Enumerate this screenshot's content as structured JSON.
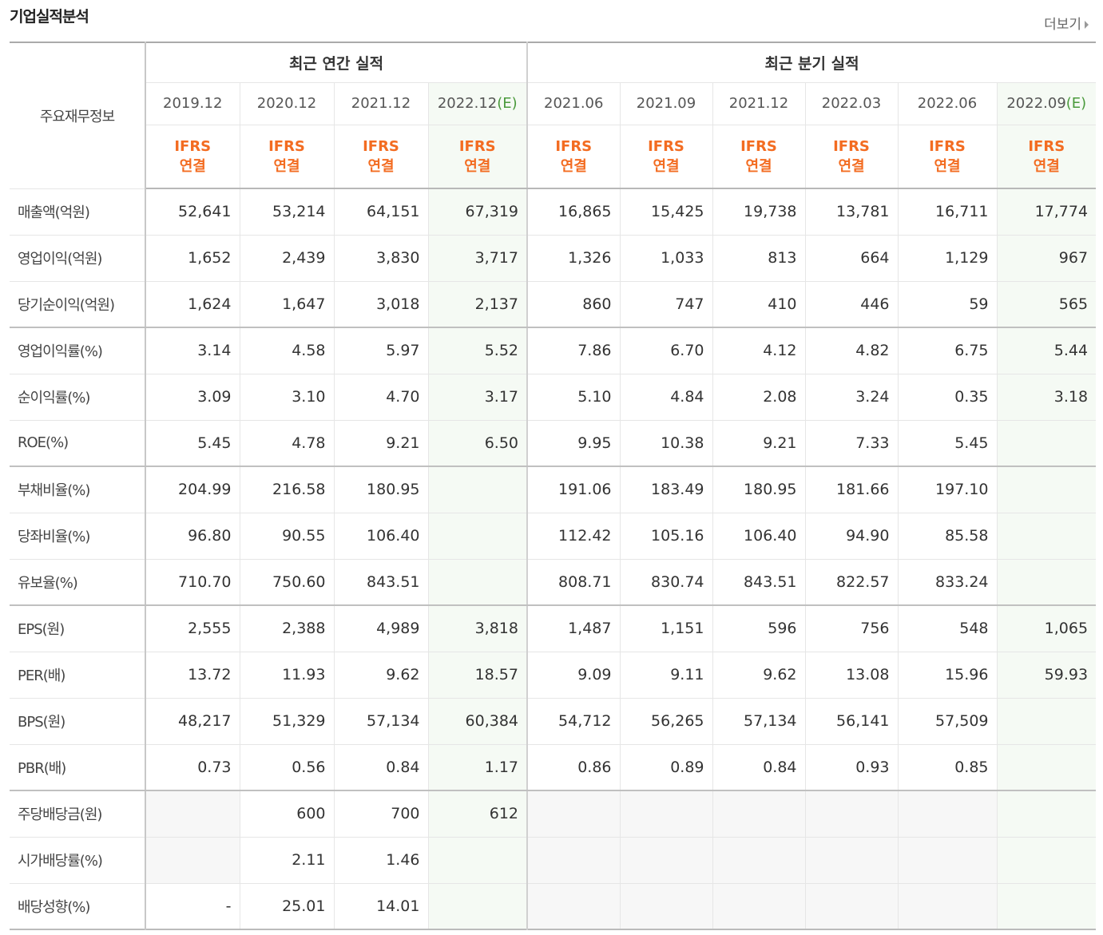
{
  "header": {
    "title": "기업실적분석",
    "more": "더보기"
  },
  "table": {
    "row_header": "주요재무정보",
    "groups": [
      {
        "label": "최근 연간 실적",
        "columns": [
          {
            "date": "2019.12",
            "ifrs": "IFRS",
            "basis": "연결"
          },
          {
            "date": "2020.12",
            "ifrs": "IFRS",
            "basis": "연결"
          },
          {
            "date": "2021.12",
            "ifrs": "IFRS",
            "basis": "연결"
          },
          {
            "date": "2022.12",
            "estimate": "(E)",
            "ifrs": "IFRS",
            "basis": "연결"
          }
        ]
      },
      {
        "label": "최근 분기 실적",
        "columns": [
          {
            "date": "2021.06",
            "ifrs": "IFRS",
            "basis": "연결"
          },
          {
            "date": "2021.09",
            "ifrs": "IFRS",
            "basis": "연결"
          },
          {
            "date": "2021.12",
            "ifrs": "IFRS",
            "basis": "연결"
          },
          {
            "date": "2022.03",
            "ifrs": "IFRS",
            "basis": "연결"
          },
          {
            "date": "2022.06",
            "ifrs": "IFRS",
            "basis": "연결"
          },
          {
            "date": "2022.09",
            "estimate": "(E)",
            "ifrs": "IFRS",
            "basis": "연결"
          }
        ]
      }
    ],
    "rows": [
      {
        "label": "매출액(억원)",
        "values": [
          "52,641",
          "53,214",
          "64,151",
          "67,319",
          "16,865",
          "15,425",
          "19,738",
          "13,781",
          "16,711",
          "17,774"
        ]
      },
      {
        "label": "영업이익(억원)",
        "values": [
          "1,652",
          "2,439",
          "3,830",
          "3,717",
          "1,326",
          "1,033",
          "813",
          "664",
          "1,129",
          "967"
        ]
      },
      {
        "label": "당기순이익(억원)",
        "values": [
          "1,624",
          "1,647",
          "3,018",
          "2,137",
          "860",
          "747",
          "410",
          "446",
          "59",
          "565"
        ]
      },
      {
        "label": "영업이익률(%)",
        "values": [
          "3.14",
          "4.58",
          "5.97",
          "5.52",
          "7.86",
          "6.70",
          "4.12",
          "4.82",
          "6.75",
          "5.44"
        ]
      },
      {
        "label": "순이익률(%)",
        "values": [
          "3.09",
          "3.10",
          "4.70",
          "3.17",
          "5.10",
          "4.84",
          "2.08",
          "3.24",
          "0.35",
          "3.18"
        ]
      },
      {
        "label": "ROE(%)",
        "values": [
          "5.45",
          "4.78",
          "9.21",
          "6.50",
          "9.95",
          "10.38",
          "9.21",
          "7.33",
          "5.45",
          null
        ]
      },
      {
        "label": "부채비율(%)",
        "values": [
          "204.99",
          "216.58",
          "180.95",
          null,
          "191.06",
          "183.49",
          "180.95",
          "181.66",
          "197.10",
          null
        ]
      },
      {
        "label": "당좌비율(%)",
        "values": [
          "96.80",
          "90.55",
          "106.40",
          null,
          "112.42",
          "105.16",
          "106.40",
          "94.90",
          "85.58",
          null
        ]
      },
      {
        "label": "유보율(%)",
        "values": [
          "710.70",
          "750.60",
          "843.51",
          null,
          "808.71",
          "830.74",
          "843.51",
          "822.57",
          "833.24",
          null
        ]
      },
      {
        "label": "EPS(원)",
        "values": [
          "2,555",
          "2,388",
          "4,989",
          "3,818",
          "1,487",
          "1,151",
          "596",
          "756",
          "548",
          "1,065"
        ]
      },
      {
        "label": "PER(배)",
        "values": [
          "13.72",
          "11.93",
          "9.62",
          "18.57",
          "9.09",
          "9.11",
          "9.62",
          "13.08",
          "15.96",
          "59.93"
        ]
      },
      {
        "label": "BPS(원)",
        "values": [
          "48,217",
          "51,329",
          "57,134",
          "60,384",
          "54,712",
          "56,265",
          "57,134",
          "56,141",
          "57,509",
          null
        ]
      },
      {
        "label": "PBR(배)",
        "values": [
          "0.73",
          "0.56",
          "0.84",
          "1.17",
          "0.86",
          "0.89",
          "0.84",
          "0.93",
          "0.85",
          null
        ]
      },
      {
        "label": "주당배당금(원)",
        "values": [
          null,
          "600",
          "700",
          "612",
          null,
          null,
          null,
          null,
          null,
          null
        ]
      },
      {
        "label": "시가배당률(%)",
        "values": [
          null,
          "2.11",
          "1.46",
          null,
          null,
          null,
          null,
          null,
          null,
          null
        ]
      },
      {
        "label": "배당성향(%)",
        "values": [
          "-",
          "25.01",
          "14.01",
          null,
          null,
          null,
          null,
          null,
          null,
          null
        ]
      }
    ]
  }
}
